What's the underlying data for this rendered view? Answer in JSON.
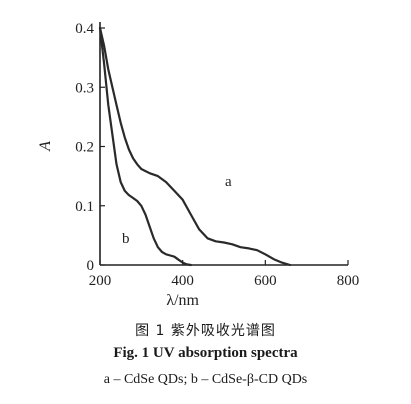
{
  "chart_data": {
    "type": "line",
    "xlabel": "λ/nm",
    "ylabel": "A",
    "xlim": [
      200,
      800
    ],
    "ylim": [
      0,
      0.4
    ],
    "x_ticks": [
      "200",
      "400",
      "600",
      "800"
    ],
    "y_ticks": [
      "0",
      "0.1",
      "0.2",
      "0.3",
      "0.4"
    ],
    "grid": false,
    "series": [
      {
        "name": "a",
        "x": [
          200,
          210,
          220,
          230,
          240,
          250,
          260,
          270,
          280,
          290,
          300,
          320,
          340,
          360,
          380,
          400,
          420,
          440,
          460,
          480,
          500,
          520,
          540,
          560,
          580,
          600,
          620,
          640,
          660
        ],
        "y": [
          0.4,
          0.37,
          0.33,
          0.3,
          0.27,
          0.24,
          0.215,
          0.195,
          0.18,
          0.17,
          0.162,
          0.155,
          0.15,
          0.14,
          0.125,
          0.11,
          0.085,
          0.06,
          0.045,
          0.04,
          0.038,
          0.035,
          0.03,
          0.028,
          0.025,
          0.018,
          0.01,
          0.004,
          0
        ]
      },
      {
        "name": "b",
        "x": [
          200,
          210,
          220,
          230,
          240,
          250,
          260,
          270,
          280,
          290,
          300,
          310,
          320,
          330,
          340,
          350,
          360,
          370,
          380,
          390,
          400,
          410,
          420
        ],
        "y": [
          0.4,
          0.34,
          0.27,
          0.22,
          0.17,
          0.14,
          0.125,
          0.118,
          0.113,
          0.108,
          0.1,
          0.085,
          0.065,
          0.045,
          0.03,
          0.022,
          0.018,
          0.016,
          0.014,
          0.009,
          0.004,
          0.001,
          0
        ]
      }
    ]
  },
  "captions": {
    "chinese": "图 1  紫外吸收光谱图",
    "english": "Fig. 1  UV absorption spectra",
    "legend": "a – CdSe QDs; b – CdSe-β-CD QDs"
  }
}
